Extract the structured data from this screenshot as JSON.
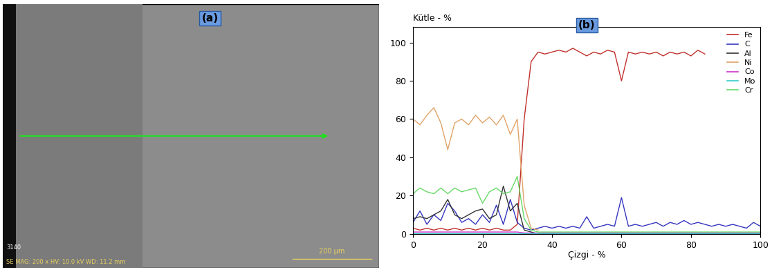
{
  "image_panel": {
    "label": "(a)",
    "image_id": "3140",
    "info": "SE MAG: 200 x HV: 10.0 kV WD: 11.2 mm",
    "scale_bar": "200 µm"
  },
  "chart_data": {
    "type": "line",
    "panel_label": "(b)",
    "y_label": "Kütle - %",
    "x_label": "Çizgi - %",
    "xlim": [
      0,
      100
    ],
    "ylim": [
      0,
      108
    ],
    "xticks": [
      0,
      20,
      40,
      60,
      80,
      100
    ],
    "yticks": [
      0,
      20,
      40,
      60,
      80,
      100
    ],
    "legend": "upper right",
    "grid": false,
    "x": [
      0,
      2,
      4,
      6,
      8,
      10,
      12,
      14,
      16,
      18,
      20,
      22,
      24,
      26,
      28,
      30,
      32,
      34,
      36,
      38,
      40,
      42,
      44,
      46,
      48,
      50,
      52,
      54,
      56,
      58,
      60,
      62,
      64,
      66,
      68,
      70,
      72,
      74,
      76,
      78,
      80,
      82,
      84,
      86,
      88,
      90,
      92,
      94,
      96,
      98,
      100
    ],
    "series": [
      {
        "name": "Fe",
        "color": "#c0302c",
        "values": [
          3,
          2,
          3,
          2,
          3,
          2,
          3,
          2,
          3,
          2,
          3,
          2,
          3,
          2,
          2,
          5,
          60,
          90,
          95,
          94,
          95,
          96,
          95,
          97,
          95,
          93,
          95,
          94,
          96,
          95,
          80,
          95,
          94,
          95,
          94,
          95,
          93,
          95,
          94,
          95,
          93,
          96,
          94,
          null,
          null,
          null,
          null,
          null,
          null,
          null,
          null
        ]
      },
      {
        "name": "C",
        "color": "#3535c0",
        "values": [
          6,
          12,
          5,
          10,
          7,
          16,
          12,
          6,
          8,
          5,
          10,
          6,
          15,
          5,
          18,
          6,
          3,
          2,
          3,
          4,
          3,
          4,
          3,
          4,
          3,
          9,
          3,
          4,
          5,
          4,
          19,
          4,
          5,
          4,
          5,
          6,
          4,
          6,
          5,
          7,
          5,
          6,
          5,
          4,
          5,
          4,
          5,
          4,
          3,
          6,
          4
        ]
      },
      {
        "name": "Al",
        "color": "#333333",
        "values": [
          8,
          9,
          8,
          10,
          12,
          18,
          10,
          8,
          10,
          12,
          13,
          8,
          10,
          25,
          12,
          16,
          2,
          1,
          0,
          null,
          null,
          null,
          null,
          null,
          null,
          null,
          null,
          null,
          null,
          null,
          null,
          null,
          null,
          null,
          null,
          null,
          null,
          null,
          null,
          null,
          null,
          null,
          null,
          null,
          null,
          null,
          null,
          null,
          null,
          null,
          null
        ]
      },
      {
        "name": "Ni",
        "color": "#e0a366",
        "values": [
          60,
          57,
          62,
          66,
          58,
          44,
          58,
          60,
          57,
          62,
          58,
          61,
          57,
          62,
          52,
          60,
          15,
          3,
          2,
          null,
          null,
          null,
          null,
          null,
          null,
          null,
          null,
          null,
          null,
          null,
          null,
          null,
          null,
          null,
          null,
          null,
          null,
          null,
          null,
          null,
          null,
          null,
          null,
          null,
          null,
          null,
          null,
          null,
          null,
          null,
          null
        ]
      },
      {
        "name": "Co",
        "color": "#cc33cc",
        "values": [
          1,
          1,
          1,
          1,
          1,
          1,
          1,
          1,
          1,
          1,
          1,
          1,
          1,
          1,
          1,
          1,
          0.5,
          0.5,
          0.5,
          0.5,
          0.5,
          0.5,
          0.5,
          0.5,
          0.5,
          0.5,
          0.5,
          0.5,
          0.5,
          0.5,
          0.5,
          0.5,
          0.5,
          0.5,
          0.5,
          0.5,
          0.5,
          0.5,
          0.5,
          0.5,
          0.5,
          0.5,
          0.5,
          0.5,
          0.5,
          0.5,
          0.5,
          0.5,
          0.5,
          0.5,
          0.5
        ]
      },
      {
        "name": "Mo",
        "color": "#33cccc",
        "values": [
          0.3,
          0.3,
          0.3,
          0.3,
          0.3,
          0.3,
          0.3,
          0.3,
          0.3,
          0.3,
          0.3,
          0.3,
          0.3,
          0.3,
          0.3,
          0.3,
          0.3,
          0.3,
          0.3,
          0.3,
          0.3,
          0.3,
          0.3,
          0.3,
          0.3,
          0.3,
          0.3,
          0.3,
          0.3,
          0.3,
          0.3,
          0.3,
          0.3,
          0.3,
          0.3,
          0.3,
          0.3,
          0.3,
          0.3,
          0.3,
          0.3,
          0.3,
          0.3,
          0.3,
          0.3,
          0.3,
          0.3,
          0.3,
          0.3,
          0.3,
          0.3
        ]
      },
      {
        "name": "Cr",
        "color": "#66d966",
        "values": [
          21,
          24,
          22,
          21,
          24,
          21,
          24,
          22,
          23,
          24,
          16,
          22,
          24,
          21,
          22,
          30,
          8,
          2,
          1,
          1,
          1,
          1,
          1,
          1,
          1,
          1,
          1,
          1,
          1,
          1,
          1,
          1,
          1,
          1,
          1,
          1,
          1,
          1,
          1,
          1,
          1,
          1,
          1,
          1,
          1,
          1,
          1,
          1,
          1,
          1,
          1
        ]
      }
    ]
  }
}
